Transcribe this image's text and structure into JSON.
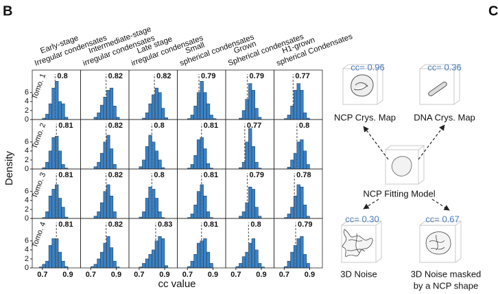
{
  "chart_data": {
    "type": "histogram",
    "panel_label": "B",
    "ylabel": "Density",
    "xlabel": "cc value",
    "columns": [
      [
        "Early-stage",
        "Irregular condensates"
      ],
      [
        "Intermediate-stage",
        "irregular condensates"
      ],
      [
        "Late stage",
        "irregular condensates"
      ],
      [
        "Small",
        "spherical condensates"
      ],
      [
        "Grown",
        "Spherical condensates"
      ],
      [
        "H1-grown",
        "spherical Condensates"
      ]
    ],
    "rows": [
      "Tomo. 1",
      "Tomo. 2",
      "Tomo. 3",
      "Tomo. 4"
    ],
    "xlim": [
      0.62,
      1.0
    ],
    "xticks": [
      0.7,
      0.9
    ],
    "ylim": [
      0,
      11
    ],
    "yticks": [
      0,
      2,
      4,
      6
    ],
    "bins": [
      0.65,
      0.675,
      0.7,
      0.725,
      0.75,
      0.775,
      0.8,
      0.825,
      0.85,
      0.875,
      0.9,
      0.925,
      0.95
    ],
    "color": "#3b82c4",
    "panels": [
      [
        {
          "median": 0.8,
          "values": [
            0,
            0,
            0.3,
            1.2,
            3.5,
            7,
            8.5,
            4,
            3.5,
            0.5,
            0,
            0
          ]
        },
        {
          "median": 0.82,
          "values": [
            0,
            0,
            0,
            0.5,
            1.5,
            3.2,
            5,
            6.5,
            7,
            3,
            0.5,
            0
          ]
        },
        {
          "median": 0.82,
          "values": [
            0,
            0,
            0,
            0.3,
            1.5,
            3.5,
            5.5,
            7,
            6,
            2.5,
            0.4,
            0
          ]
        },
        {
          "median": 0.79,
          "values": [
            0,
            0,
            0.2,
            1,
            3,
            6,
            8.5,
            6,
            3.5,
            1,
            0.2,
            0
          ]
        },
        {
          "median": 0.79,
          "values": [
            0,
            0,
            0,
            0.3,
            2,
            4.5,
            8,
            6.5,
            2.5,
            0.5,
            0,
            0
          ]
        },
        {
          "median": 0.77,
          "values": [
            0,
            0,
            0.2,
            1,
            3,
            6.5,
            8,
            6.5,
            1.5,
            0.3,
            0,
            0
          ]
        }
      ],
      [
        {
          "median": 0.81,
          "values": [
            0,
            0,
            0.3,
            1.5,
            4,
            7,
            7.3,
            4,
            1,
            0.2,
            0,
            0
          ]
        },
        {
          "median": 0.82,
          "values": [
            0,
            0,
            0,
            0.5,
            1.5,
            3.5,
            6,
            7.5,
            4.5,
            1,
            0,
            0
          ]
        },
        {
          "median": 0.8,
          "values": [
            0,
            0,
            0.5,
            2,
            5,
            7.5,
            6,
            4,
            2,
            0.3,
            0,
            0
          ]
        },
        {
          "median": 0.81,
          "values": [
            0,
            0,
            0.2,
            1,
            3,
            6.5,
            7,
            4.5,
            1.2,
            0.2,
            0,
            0
          ]
        },
        {
          "median": 0.77,
          "values": [
            0,
            0,
            0,
            0.3,
            1.5,
            6,
            9,
            5,
            1.5,
            0.2,
            0,
            0
          ]
        },
        {
          "median": 0.8,
          "values": [
            0,
            0,
            0,
            0.4,
            2,
            3.5,
            6,
            6.5,
            4,
            1,
            0,
            0
          ]
        }
      ],
      [
        {
          "median": 0.81,
          "values": [
            0,
            0,
            0.2,
            1.5,
            5,
            6.5,
            7.5,
            4.5,
            2.5,
            0.3,
            0,
            0
          ]
        },
        {
          "median": 0.82,
          "values": [
            0,
            0,
            0,
            0.5,
            1.5,
            3.5,
            6,
            7.5,
            5,
            1.5,
            0,
            0
          ]
        },
        {
          "median": 0.8,
          "values": [
            0,
            0,
            0.3,
            1.5,
            4.5,
            7,
            6.5,
            4.5,
            1.5,
            0.2,
            0,
            0
          ]
        },
        {
          "median": 0.81,
          "values": [
            0,
            0,
            0.2,
            1,
            3,
            6,
            7.5,
            5,
            1.5,
            0.2,
            0,
            0
          ]
        },
        {
          "median": 0.79,
          "values": [
            0,
            0,
            0,
            0.5,
            1.5,
            3.5,
            7,
            6.5,
            2.5,
            0.5,
            0,
            0
          ]
        },
        {
          "median": 0.78,
          "values": [
            0,
            0,
            0.2,
            1,
            2.5,
            5,
            7.5,
            7,
            3,
            0.5,
            0,
            0
          ]
        }
      ],
      [
        {
          "median": 0.81,
          "values": [
            0,
            0.2,
            0.8,
            1.5,
            5,
            6.5,
            6.5,
            3.5,
            1.5,
            0.3,
            0,
            0
          ]
        },
        {
          "median": 0.82,
          "values": [
            0,
            0,
            0.3,
            0.8,
            2,
            3.5,
            5.5,
            7,
            4.5,
            1.5,
            0.2,
            0
          ]
        },
        {
          "median": 0.83,
          "values": [
            0,
            0,
            0.2,
            1,
            2,
            3,
            4,
            6,
            7,
            6.5,
            0.5,
            0
          ]
        },
        {
          "median": 0.81,
          "values": [
            0,
            0,
            0.3,
            1.5,
            3,
            5.5,
            6,
            6.5,
            3.5,
            1,
            0,
            0
          ]
        },
        {
          "median": 0.8,
          "values": [
            0,
            0,
            0.3,
            1,
            2.5,
            3.5,
            5.5,
            6.5,
            4,
            1,
            0.2,
            0
          ]
        },
        {
          "median": 0.79,
          "values": [
            0,
            0,
            0.3,
            1.5,
            3.5,
            5,
            6.5,
            7,
            3,
            1,
            0,
            0
          ]
        }
      ]
    ]
  },
  "diagram": {
    "panel_label": "C",
    "nodes": [
      {
        "label": "NCP Crys. Map",
        "cc": "cc= 0.96"
      },
      {
        "label": "DNA Crys. Map",
        "cc": "cc= 0.36"
      },
      {
        "label": "NCP Fitting Model"
      },
      {
        "label": "3D  Noise",
        "cc": "cc= 0.30"
      },
      {
        "label": [
          "3D Noise masked",
          "by a NCP shape"
        ],
        "cc": "cc= 0.67"
      }
    ]
  }
}
